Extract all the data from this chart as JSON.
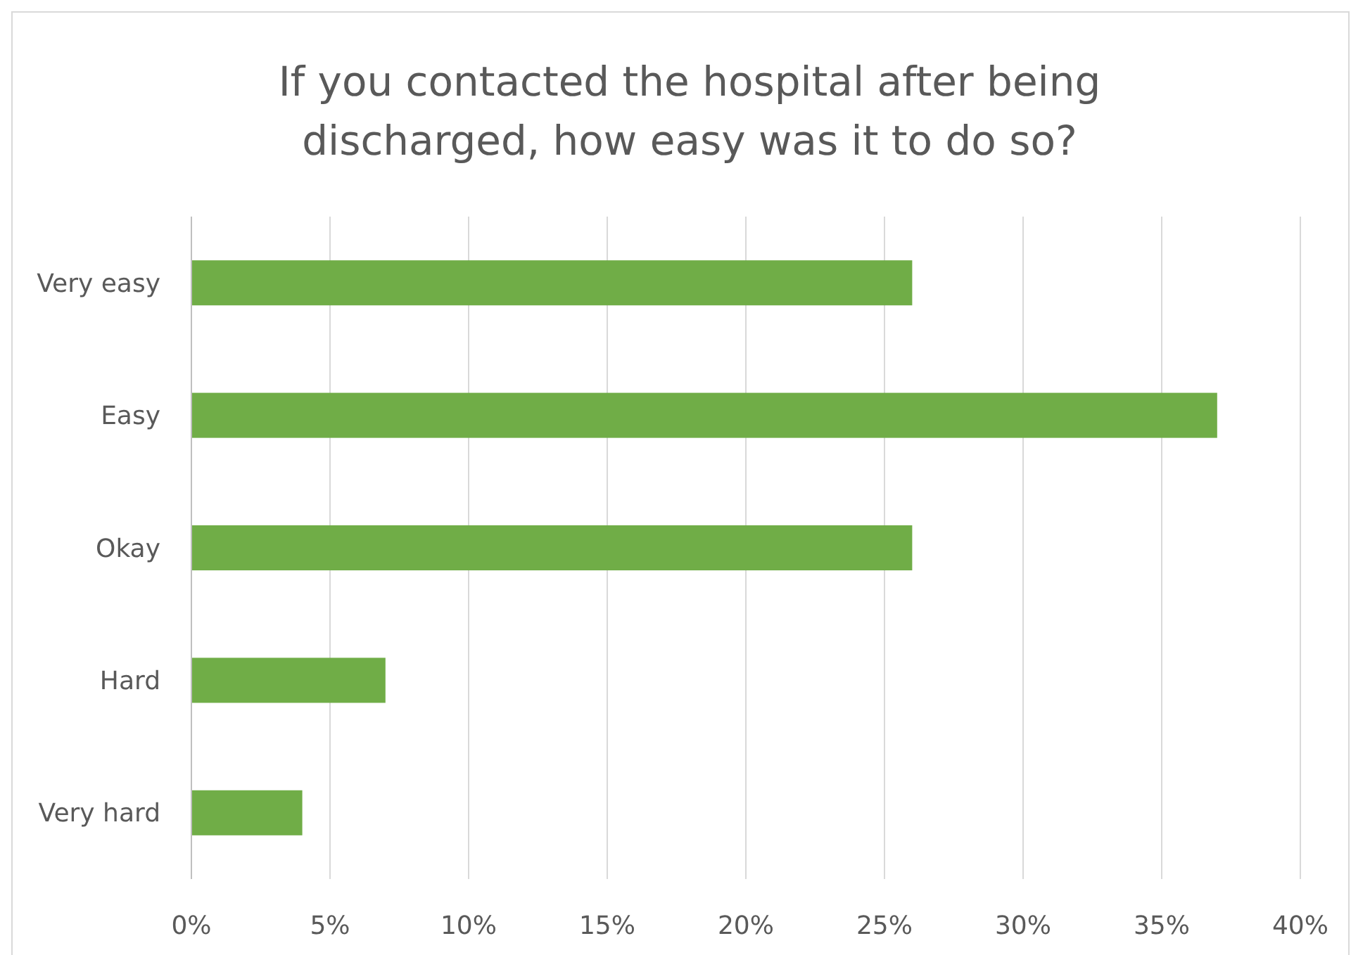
{
  "chart_data": {
    "type": "bar",
    "orientation": "horizontal",
    "title": "If you contacted the hospital after being discharged, how easy was it to do so?",
    "categories": [
      "Very easy",
      "Easy",
      "Okay",
      "Hard",
      "Very hard"
    ],
    "values": [
      26,
      37,
      26,
      7,
      4
    ],
    "color": "#70ad47",
    "xlim": [
      0,
      40
    ],
    "xticks": [
      {
        "value": 0,
        "label": "0%"
      },
      {
        "value": 5,
        "label": "5%"
      },
      {
        "value": 10,
        "label": "10%"
      },
      {
        "value": 15,
        "label": "15%"
      },
      {
        "value": 20,
        "label": "20%"
      },
      {
        "value": 25,
        "label": "25%"
      },
      {
        "value": 30,
        "label": "30%"
      },
      {
        "value": 35,
        "label": "35%"
      },
      {
        "value": 40,
        "label": "40%"
      }
    ],
    "grid": "x"
  }
}
